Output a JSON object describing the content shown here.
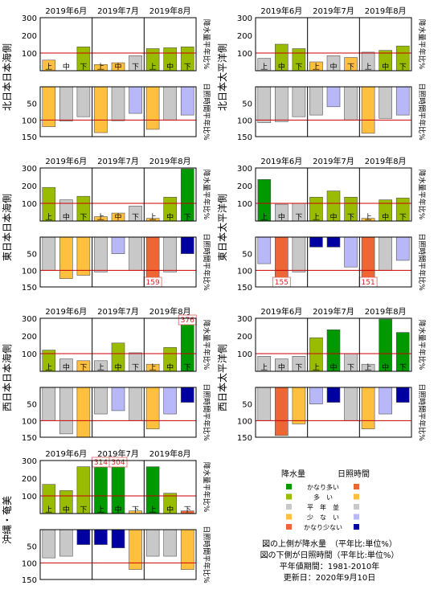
{
  "months": [
    "2019年6月",
    "2019年7月",
    "2019年8月"
  ],
  "dekads": [
    "上",
    "中",
    "下"
  ],
  "precip_ticks": [
    "300",
    "200",
    "100"
  ],
  "sun_ticks": [
    "50",
    "100",
    "150"
  ],
  "precip_side_label": "降水量平年比%",
  "sun_side_label": "日照時間平年比%",
  "colors": {
    "very_high": "#009900",
    "high": "#99bb00",
    "normal": "#c8c8c8",
    "low": "#b8b8f8",
    "very_low": "#0000a0",
    "sun_very_high": "#ee6633",
    "sun_high": "#ffc040",
    "normal_line": "#cc0000"
  },
  "chart_data": [
    {
      "type": "bar",
      "region": "北日本日本海側",
      "categories": [
        "6月上",
        "6月中",
        "6月下",
        "7月上",
        "7月中",
        "7月下",
        "8月上",
        "8月中",
        "8月下"
      ],
      "precipitation": [
        60,
        0,
        135,
        35,
        45,
        85,
        125,
        130,
        135
      ],
      "precip_colors": [
        "#ffc040",
        "#c8c8c8",
        "#99bb00",
        "#ffc040",
        "#ffc040",
        "#c8c8c8",
        "#99bb00",
        "#99bb00",
        "#99bb00"
      ],
      "precip_labels": [
        "",
        "",
        "",
        "",
        "",
        "",
        "",
        "",
        ""
      ],
      "sunshine": [
        120,
        103,
        90,
        138,
        102,
        80,
        128,
        100,
        85
      ],
      "sun_colors": [
        "#ffc040",
        "#c8c8c8",
        "#c8c8c8",
        "#ffc040",
        "#c8c8c8",
        "#b8b8f8",
        "#ffc040",
        "#c8c8c8",
        "#b8b8f8"
      ],
      "sun_labels": [
        "",
        "",
        "",
        "",
        "",
        "",
        "",
        "",
        ""
      ],
      "precip_ylim": [
        0,
        300
      ],
      "sun_ylim": [
        150,
        0
      ]
    },
    {
      "type": "bar",
      "region": "北日本太平洋側",
      "categories": [
        "6月上",
        "6月中",
        "6月下",
        "7月上",
        "7月中",
        "7月下",
        "8月上",
        "8月中",
        "8月下"
      ],
      "precipitation": [
        70,
        150,
        125,
        50,
        85,
        75,
        105,
        115,
        140
      ],
      "precip_colors": [
        "#c8c8c8",
        "#99bb00",
        "#99bb00",
        "#ffc040",
        "#c8c8c8",
        "#ffc040",
        "#c8c8c8",
        "#99bb00",
        "#99bb00"
      ],
      "precip_labels": [
        "",
        "",
        "",
        "",
        "",
        "",
        "",
        "",
        ""
      ],
      "sunshine": [
        108,
        105,
        90,
        85,
        60,
        100,
        140,
        95,
        85
      ],
      "sun_colors": [
        "#c8c8c8",
        "#c8c8c8",
        "#c8c8c8",
        "#c8c8c8",
        "#b8b8f8",
        "#c8c8c8",
        "#ffc040",
        "#c8c8c8",
        "#b8b8f8"
      ],
      "sun_labels": [
        "",
        "",
        "",
        "",
        "",
        "",
        "",
        "",
        ""
      ],
      "precip_ylim": [
        0,
        300
      ],
      "sun_ylim": [
        150,
        0
      ]
    },
    {
      "type": "bar",
      "region": "東日本日本海側",
      "categories": [
        "6月上",
        "6月中",
        "6月下",
        "7月上",
        "7月中",
        "7月下",
        "8月上",
        "8月中",
        "8月下"
      ],
      "precipitation": [
        190,
        120,
        140,
        25,
        45,
        85,
        15,
        135,
        295
      ],
      "precip_colors": [
        "#99bb00",
        "#c8c8c8",
        "#99bb00",
        "#ffc040",
        "#ffc040",
        "#c8c8c8",
        "#ffc040",
        "#99bb00",
        "#009900"
      ],
      "precip_labels": [
        "",
        "",
        "",
        "",
        "",
        "",
        "",
        "",
        ""
      ],
      "sunshine": [
        100,
        125,
        115,
        105,
        50,
        100,
        159,
        105,
        50
      ],
      "sun_colors": [
        "#c8c8c8",
        "#ffc040",
        "#ffc040",
        "#c8c8c8",
        "#b8b8f8",
        "#c8c8c8",
        "#ee6633",
        "#c8c8c8",
        "#0000a0"
      ],
      "sun_labels": [
        "",
        "",
        "",
        "",
        "",
        "",
        "159",
        "",
        ""
      ],
      "precip_ylim": [
        0,
        300
      ],
      "sun_ylim": [
        150,
        0
      ]
    },
    {
      "type": "bar",
      "region": "東日本太平洋側",
      "categories": [
        "6月上",
        "6月中",
        "6月下",
        "7月上",
        "7月中",
        "7月下",
        "8月上",
        "8月中",
        "8月下"
      ],
      "precipitation": [
        235,
        95,
        100,
        135,
        170,
        135,
        15,
        120,
        130
      ],
      "precip_colors": [
        "#009900",
        "#c8c8c8",
        "#c8c8c8",
        "#99bb00",
        "#99bb00",
        "#99bb00",
        "#ffc040",
        "#99bb00",
        "#99bb00"
      ],
      "precip_labels": [
        "",
        "",
        "",
        "",
        "",
        "",
        "",
        "",
        ""
      ],
      "sunshine": [
        80,
        155,
        105,
        30,
        30,
        90,
        151,
        100,
        70
      ],
      "sun_colors": [
        "#b8b8f8",
        "#ee6633",
        "#c8c8c8",
        "#0000a0",
        "#0000a0",
        "#b8b8f8",
        "#ee6633",
        "#c8c8c8",
        "#b8b8f8"
      ],
      "sun_labels": [
        "",
        "155",
        "",
        "",
        "",
        "",
        "151",
        "",
        ""
      ],
      "precip_ylim": [
        0,
        300
      ],
      "sun_ylim": [
        150,
        0
      ]
    },
    {
      "type": "bar",
      "region": "西日本日本海側",
      "categories": [
        "6月上",
        "6月中",
        "6月下",
        "7月上",
        "7月中",
        "7月下",
        "8月上",
        "8月中",
        "8月下"
      ],
      "precipitation": [
        120,
        70,
        60,
        60,
        160,
        105,
        40,
        135,
        376
      ],
      "precip_colors": [
        "#99bb00",
        "#c8c8c8",
        "#ffc040",
        "#c8c8c8",
        "#99bb00",
        "#c8c8c8",
        "#ffc040",
        "#99bb00",
        "#009900"
      ],
      "precip_labels": [
        "",
        "",
        "",
        "",
        "",
        "",
        "",
        "",
        "376"
      ],
      "sunshine": [
        100,
        140,
        150,
        80,
        70,
        100,
        125,
        80,
        45
      ],
      "sun_colors": [
        "#c8c8c8",
        "#c8c8c8",
        "#ffc040",
        "#c8c8c8",
        "#b8b8f8",
        "#c8c8c8",
        "#ffc040",
        "#b8b8f8",
        "#0000a0"
      ],
      "sun_labels": [
        "",
        "",
        "",
        "",
        "",
        "",
        "",
        "",
        ""
      ],
      "precip_ylim": [
        0,
        300
      ],
      "sun_ylim": [
        150,
        0
      ]
    },
    {
      "type": "bar",
      "region": "西日本太平洋側",
      "categories": [
        "6月上",
        "6月中",
        "6月下",
        "7月上",
        "7月中",
        "7月下",
        "8月上",
        "8月中",
        "8月下"
      ],
      "precipitation": [
        85,
        70,
        85,
        190,
        235,
        100,
        40,
        295,
        220
      ],
      "precip_colors": [
        "#c8c8c8",
        "#c8c8c8",
        "#c8c8c8",
        "#99bb00",
        "#009900",
        "#c8c8c8",
        "#c8c8c8",
        "#009900",
        "#009900"
      ],
      "precip_labels": [
        "",
        "",
        "",
        "",
        "",
        "",
        "",
        "",
        ""
      ],
      "sunshine": [
        100,
        145,
        110,
        50,
        45,
        100,
        125,
        80,
        45
      ],
      "sun_colors": [
        "#c8c8c8",
        "#ee6633",
        "#ffc040",
        "#b8b8f8",
        "#0000a0",
        "#c8c8c8",
        "#ffc040",
        "#b8b8f8",
        "#0000a0"
      ],
      "sun_labels": [
        "",
        "",
        "",
        "",
        "",
        "",
        "",
        "",
        ""
      ],
      "precip_ylim": [
        0,
        300
      ],
      "sun_ylim": [
        150,
        0
      ]
    },
    {
      "type": "bar",
      "region": "沖縄・奄美",
      "categories": [
        "6月上",
        "6月中",
        "6月下",
        "7月上",
        "7月中",
        "7月下",
        "8月上",
        "8月中",
        "8月下"
      ],
      "precipitation": [
        165,
        130,
        265,
        314,
        304,
        15,
        265,
        115,
        15
      ],
      "precip_colors": [
        "#99bb00",
        "#99bb00",
        "#99bb00",
        "#009900",
        "#009900",
        "#ffc040",
        "#009900",
        "#99bb00",
        "#ee6633"
      ],
      "precip_labels": [
        "",
        "",
        "",
        "314",
        "304",
        "",
        "",
        "",
        ""
      ],
      "sunshine": [
        85,
        80,
        45,
        45,
        55,
        120,
        80,
        80,
        120
      ],
      "sun_colors": [
        "#c8c8c8",
        "#c8c8c8",
        "#0000a0",
        "#0000a0",
        "#0000a0",
        "#ffc040",
        "#c8c8c8",
        "#c8c8c8",
        "#ffc040"
      ],
      "sun_labels": [
        "",
        "",
        "",
        "",
        "",
        "",
        "",
        "",
        ""
      ],
      "precip_ylim": [
        0,
        300
      ],
      "sun_ylim": [
        150,
        0
      ]
    }
  ],
  "legend": {
    "header_precip": "降水量",
    "header_sun": "日照時間",
    "rows": [
      {
        "label": "かなり多い",
        "precip_color": "#009900",
        "sun_color": "#ee6633"
      },
      {
        "label": "多　い",
        "precip_color": "#99bb00",
        "sun_color": "#ffc040"
      },
      {
        "label": "平　年　並",
        "precip_color": "#c8c8c8",
        "sun_color": "#c8c8c8"
      },
      {
        "label": "少　な　い",
        "precip_color": "#ffc040",
        "sun_color": "#b8b8f8"
      },
      {
        "label": "かなり少ない",
        "precip_color": "#ee6633",
        "sun_color": "#0000a0"
      }
    ]
  },
  "notes": [
    "図の上側が降水量　（平年比:単位%）",
    "図の下側が日照時間（平年比:単位%）",
    "平年値期間：1981-2010年",
    "更新日：2020年9月10日"
  ]
}
